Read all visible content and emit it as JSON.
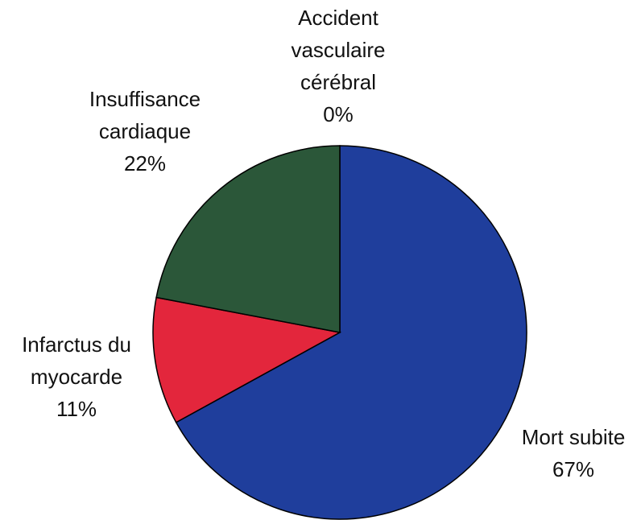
{
  "chart_data": {
    "type": "pie",
    "categories": [
      "Mort subite",
      "Infarctus du myocarde",
      "Insuffisance cardiaque",
      "Accident vasculaire cérébral"
    ],
    "values": [
      67,
      11,
      22,
      0
    ],
    "value_labels": [
      "67%",
      "11%",
      "22%",
      "0%"
    ],
    "colors": [
      "#1f3e9c",
      "#e3263c",
      "#2b5739",
      "#b0b0b0"
    ]
  }
}
